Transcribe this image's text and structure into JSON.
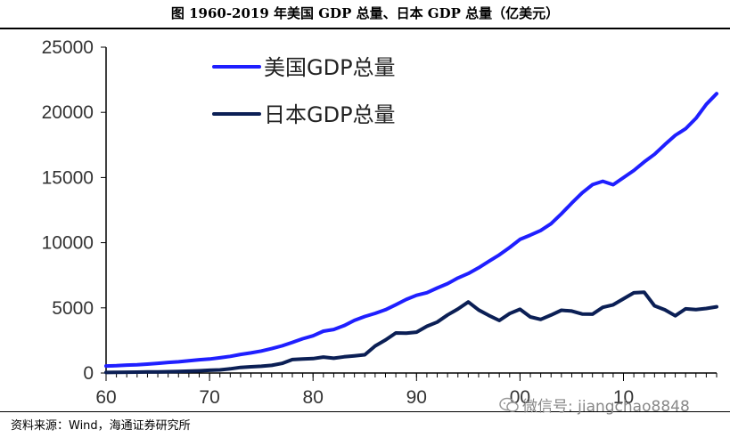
{
  "title": "图 1960-2019 年美国 GDP 总量、日本 GDP 总量（亿美元）",
  "source": "资料来源：Wind，海通证券研究所",
  "watermark": "微信号: jiangchao8848",
  "colors": {
    "us": "#1f1fff",
    "japan": "#0b1f55",
    "axis": "#000000"
  },
  "chart_data": {
    "type": "line",
    "title": "图 1960-2019 年美国 GDP 总量、日本 GDP 总量（亿美元）",
    "xlabel": "",
    "ylabel": "",
    "xlim": [
      1960,
      2019
    ],
    "ylim": [
      0,
      25000
    ],
    "x_ticks": [
      1960,
      1970,
      1980,
      1990,
      2000,
      2010
    ],
    "x_tick_labels": [
      "60",
      "70",
      "80",
      "90",
      "00",
      "10"
    ],
    "y_ticks": [
      0,
      5000,
      10000,
      15000,
      20000,
      25000
    ],
    "y_tick_labels": [
      "0",
      "5000",
      "10000",
      "15000",
      "20000",
      "25000"
    ],
    "legend_position": "top-left",
    "x": [
      1960,
      1961,
      1962,
      1963,
      1964,
      1965,
      1966,
      1967,
      1968,
      1969,
      1970,
      1971,
      1972,
      1973,
      1974,
      1975,
      1976,
      1977,
      1978,
      1979,
      1980,
      1981,
      1982,
      1983,
      1984,
      1985,
      1986,
      1987,
      1988,
      1989,
      1990,
      1991,
      1992,
      1993,
      1994,
      1995,
      1996,
      1997,
      1998,
      1999,
      2000,
      2001,
      2002,
      2003,
      2004,
      2005,
      2006,
      2007,
      2008,
      2009,
      2010,
      2011,
      2012,
      2013,
      2014,
      2015,
      2016,
      2017,
      2018,
      2019
    ],
    "series": [
      {
        "name": "美国GDP总量",
        "values": [
          543,
          563,
          605,
          638,
          686,
          744,
          815,
          862,
          943,
          1020,
          1073,
          1165,
          1280,
          1425,
          1545,
          1684,
          1873,
          2082,
          2352,
          2627,
          2857,
          3207,
          3343,
          3634,
          4037,
          4339,
          4579,
          4855,
          5236,
          5642,
          5963,
          6158,
          6520,
          6859,
          7287,
          7640,
          8073,
          8578,
          9063,
          9631,
          10252,
          10582,
          10936,
          11458,
          12214,
          13037,
          13815,
          14452,
          14713,
          14449,
          14992,
          15543,
          16197,
          16785,
          17527,
          18238,
          18745,
          19543,
          20612,
          21433
        ]
      },
      {
        "name": "日本GDP总量",
        "values": [
          44,
          54,
          61,
          70,
          82,
          91,
          105,
          124,
          146,
          172,
          212,
          241,
          318,
          432,
          480,
          522,
          586,
          737,
          1034,
          1081,
          1105,
          1220,
          1135,
          1244,
          1318,
          1398,
          2078,
          2533,
          3071,
          3054,
          3133,
          3585,
          3909,
          4454,
          4908,
          5449,
          4833,
          4415,
          4032,
          4562,
          4888,
          4304,
          4115,
          4445,
          4815,
          4755,
          4530,
          4515,
          5038,
          5231,
          5700,
          6157,
          6203,
          5156,
          4850,
          4389,
          4923,
          4867,
          4955,
          5082
        ]
      }
    ]
  }
}
